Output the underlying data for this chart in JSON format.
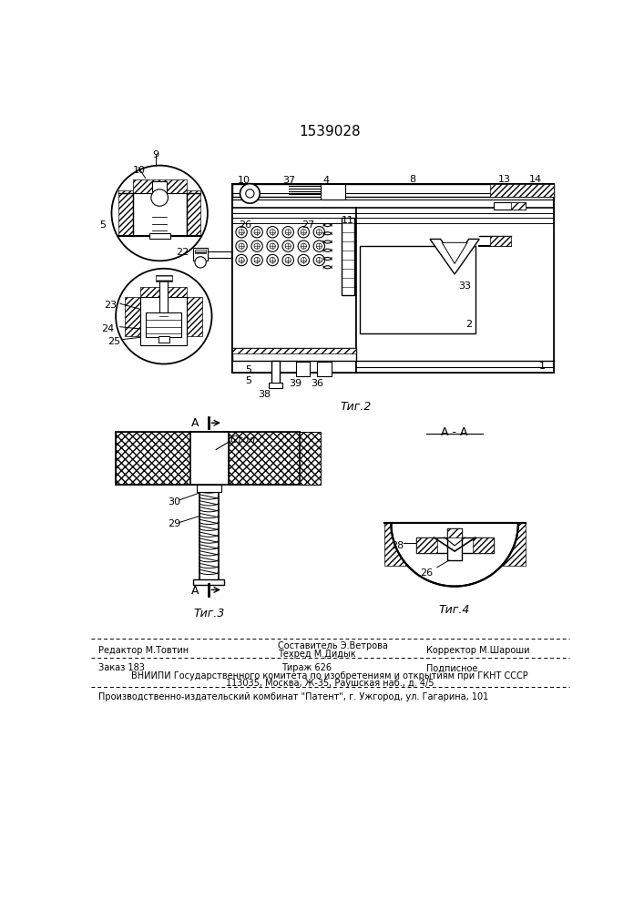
{
  "title": "1539028",
  "title_fontsize": 11,
  "fig2_label": "Τиг.2",
  "fig3_label": "Τиг.3",
  "fig4_label": "Τиг.4",
  "fig4_section_label": "А - А",
  "bg_color": "#ffffff",
  "line_color": "#000000",
  "footer": {
    "line1_left": "Редактор М.Товтин",
    "line1_center_top": "Составитель Э.Ветрова",
    "line1_center_bot": "Техред М.Дидык",
    "line1_right": "Корректор М.Шароши",
    "line2_left": "Заказ 183",
    "line2_center": "Тираж 626",
    "line2_right": "Подписное",
    "line3": "ВНИИПИ Государственного комитета по изобретениям и открытиям при ГКНТ СССР",
    "line4": "113035, Москва, Ж-35, Раушская наб., д. 4/5",
    "line5": "Производственно-издательский комбинат \"Патент\", г. Ужгород, ул. Гагарина, 101"
  }
}
